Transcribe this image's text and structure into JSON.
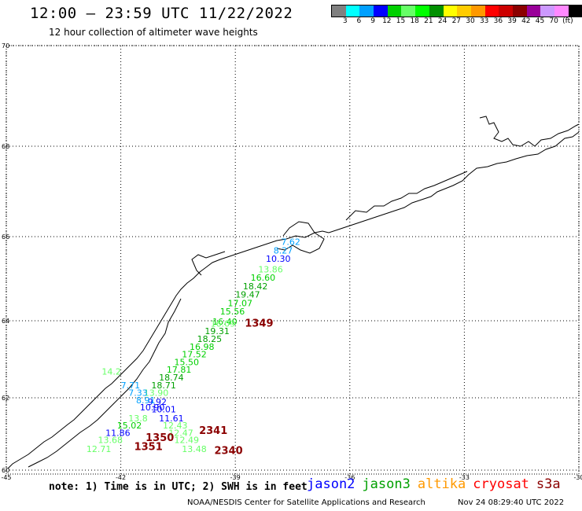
{
  "header": {
    "title": "12:00 — 23:59 UTC 11/22/2022",
    "subtitle": "12 hour collection of altimeter wave heights"
  },
  "legend": {
    "colors": [
      "#808080",
      "#00ffff",
      "#00a0ff",
      "#0000ff",
      "#00d000",
      "#66ff66",
      "#00ff00",
      "#009000",
      "#ffff00",
      "#ffcc00",
      "#ff9900",
      "#ff0000",
      "#cc0000",
      "#8b0000",
      "#990099",
      "#cc99ff",
      "#ff88ff",
      "#000000"
    ],
    "labels": [
      "3",
      "6",
      "9",
      "12",
      "15",
      "18",
      "21",
      "24",
      "27",
      "30",
      "33",
      "36",
      "39",
      "42",
      "45",
      "70",
      "(ft)"
    ]
  },
  "map": {
    "lat_labels": [
      "70",
      "68",
      "66",
      "64",
      "62",
      "60"
    ],
    "lon_labels": [
      "-45",
      "-42",
      "-39",
      "-36",
      "-33",
      "-30"
    ],
    "observations": [
      {
        "text": "7.62",
        "lon": -37.8,
        "lat": 65.8,
        "color": "#00a0ff"
      },
      {
        "text": "8.27",
        "lon": -38.0,
        "lat": 65.6,
        "color": "#00a0ff"
      },
      {
        "text": "10.30",
        "lon": -38.2,
        "lat": 65.4,
        "color": "#0000ff"
      },
      {
        "text": "13.86",
        "lon": -38.4,
        "lat": 65.15,
        "color": "#66ff66"
      },
      {
        "text": "16.60",
        "lon": -38.6,
        "lat": 64.95,
        "color": "#00d000"
      },
      {
        "text": "18.42",
        "lon": -38.8,
        "lat": 64.75,
        "color": "#00a000"
      },
      {
        "text": "19.47",
        "lon": -39.0,
        "lat": 64.55,
        "color": "#00a000"
      },
      {
        "text": "17.07",
        "lon": -39.2,
        "lat": 64.35,
        "color": "#00d000"
      },
      {
        "text": "15.56",
        "lon": -39.4,
        "lat": 64.15,
        "color": "#00d000"
      },
      {
        "text": "16.40",
        "lon": -39.6,
        "lat": 63.9,
        "color": "#00d000"
      },
      {
        "text": "16.09",
        "lon": -39.65,
        "lat": 63.85,
        "color": "#66ff66"
      },
      {
        "text": "19.31",
        "lon": -39.8,
        "lat": 63.65,
        "color": "#00a000"
      },
      {
        "text": "18.25",
        "lon": -40.0,
        "lat": 63.45,
        "color": "#00a000"
      },
      {
        "text": "16.98",
        "lon": -40.2,
        "lat": 63.25,
        "color": "#00d000"
      },
      {
        "text": "17.52",
        "lon": -40.4,
        "lat": 63.05,
        "color": "#00d000"
      },
      {
        "text": "15.50",
        "lon": -40.6,
        "lat": 62.85,
        "color": "#00d000"
      },
      {
        "text": "17.81",
        "lon": -40.8,
        "lat": 62.65,
        "color": "#00d000"
      },
      {
        "text": "18.74",
        "lon": -41.0,
        "lat": 62.45,
        "color": "#00a000"
      },
      {
        "text": "18.71",
        "lon": -41.2,
        "lat": 62.25,
        "color": "#00a000"
      },
      {
        "text": "13.90",
        "lon": -41.4,
        "lat": 62.05,
        "color": "#66ff66"
      },
      {
        "text": "9.92",
        "lon": -41.3,
        "lat": 61.8,
        "color": "#0000ff"
      },
      {
        "text": "10.01",
        "lon": -41.2,
        "lat": 61.6,
        "color": "#0000ff"
      },
      {
        "text": "11.61",
        "lon": -41.0,
        "lat": 61.35,
        "color": "#0000ff"
      },
      {
        "text": "12.43",
        "lon": -40.9,
        "lat": 61.15,
        "color": "#66ff66"
      },
      {
        "text": "12.47",
        "lon": -40.75,
        "lat": 60.95,
        "color": "#66ff66"
      },
      {
        "text": "12.49",
        "lon": -40.6,
        "lat": 60.75,
        "color": "#66ff66"
      },
      {
        "text": "13.48",
        "lon": -40.4,
        "lat": 60.5,
        "color": "#66ff66"
      },
      {
        "text": "7.71",
        "lon": -42.0,
        "lat": 62.25,
        "color": "#00a0ff"
      },
      {
        "text": "7.33",
        "lon": -41.8,
        "lat": 62.05,
        "color": "#00a0ff"
      },
      {
        "text": "8.91",
        "lon": -41.6,
        "lat": 61.85,
        "color": "#00a0ff"
      },
      {
        "text": "10.90",
        "lon": -41.5,
        "lat": 61.65,
        "color": "#0000ff"
      },
      {
        "text": "13.8",
        "lon": -41.8,
        "lat": 61.35,
        "color": "#66ff66"
      },
      {
        "text": "15.02",
        "lon": -42.1,
        "lat": 61.15,
        "color": "#00d000"
      },
      {
        "text": "11.86",
        "lon": -42.4,
        "lat": 60.95,
        "color": "#0000ff"
      },
      {
        "text": "13.68",
        "lon": -42.6,
        "lat": 60.75,
        "color": "#66ff66"
      },
      {
        "text": "12.71",
        "lon": -42.9,
        "lat": 60.5,
        "color": "#66ff66"
      },
      {
        "text": "14.2",
        "lon": -42.5,
        "lat": 62.6,
        "color": "#66ff66"
      }
    ],
    "track_labels": [
      {
        "text": "1349",
        "lon": -38.75,
        "lat": 63.85,
        "color": "#8b0000"
      },
      {
        "text": "1350",
        "lon": -41.35,
        "lat": 60.8,
        "color": "#8b0000"
      },
      {
        "text": "2341",
        "lon": -39.95,
        "lat": 61.0,
        "color": "#8b0000"
      },
      {
        "text": "1351",
        "lon": -41.65,
        "lat": 60.55,
        "color": "#8b0000"
      },
      {
        "text": "2340",
        "lon": -39.55,
        "lat": 60.45,
        "color": "#8b0000"
      }
    ]
  },
  "footer": {
    "note": "note: 1) Time is in UTC; 2) SWH is in feet",
    "satellites": [
      {
        "name": "jason2",
        "color": "#0000ff"
      },
      {
        "name": "jason3",
        "color": "#00a000"
      },
      {
        "name": "altika",
        "color": "#ff9900"
      },
      {
        "name": "cryosat",
        "color": "#ff0000"
      },
      {
        "name": "s3a",
        "color": "#8b0000"
      }
    ],
    "credit": "NOAA/NESDIS Center for Satellite Applications and Research",
    "timestamp": "Nov 24 08:29:40 UTC 2022"
  }
}
